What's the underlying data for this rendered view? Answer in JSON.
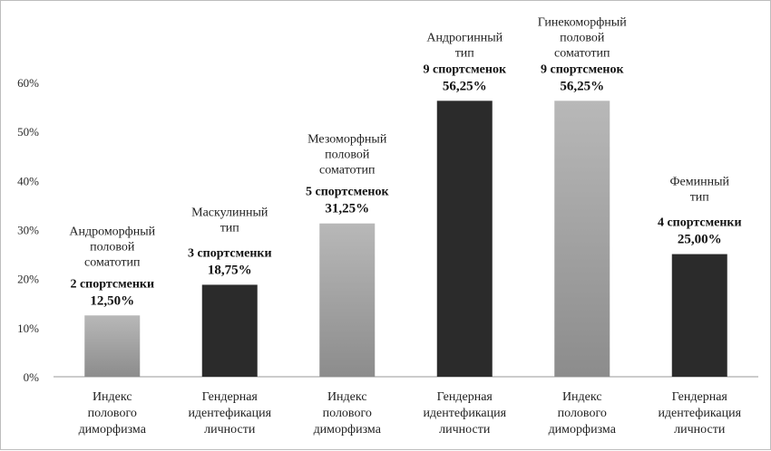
{
  "chart_data": {
    "type": "bar",
    "categories": [
      "Индекс полового диморфизма",
      "Гендерная идентефикация личности",
      "Индекс полового диморфизма",
      "Гендерная идентефикация личности",
      "Индекс полового диморфизма",
      "Гендерная идентефикация личности"
    ],
    "category_lines": [
      [
        "Индекс",
        "полового",
        "диморфизма"
      ],
      [
        "Гендерная",
        "идентефикация",
        "личности"
      ],
      [
        "Индекс",
        "полового",
        "диморфизма"
      ],
      [
        "Гендерная",
        "идентефикация",
        "личности"
      ],
      [
        "Индекс",
        "полового",
        "диморфизма"
      ],
      [
        "Гендерная",
        "идентефикация",
        "личности"
      ]
    ],
    "values": [
      12.5,
      18.75,
      31.25,
      56.25,
      56.25,
      25.0
    ],
    "bar_styles": [
      "gradient",
      "dark",
      "gradient",
      "dark",
      "gradient",
      "dark"
    ],
    "annotations": [
      {
        "type_lines": [
          "Андроморфный",
          "половой",
          "соматотип"
        ],
        "count": "2 спортсменки",
        "percent": "12,50%"
      },
      {
        "type_lines": [
          "Маскулинный",
          "тип"
        ],
        "count": "3 спортсменки",
        "percent": "18,75%"
      },
      {
        "type_lines": [
          "Мезоморфный",
          "половой",
          "соматотип"
        ],
        "count": "5 спортсменок",
        "percent": "31,25%"
      },
      {
        "type_lines": [
          "Андрогинный",
          "тип"
        ],
        "count": "9 спортсменок",
        "percent": "56,25%"
      },
      {
        "type_lines": [
          "Гинекоморфный",
          "половой",
          "соматотип"
        ],
        "count": "9 спортсменок",
        "percent": "56,25%"
      },
      {
        "type_lines": [
          "Феминный",
          "тип"
        ],
        "count": "4 спортсменки",
        "percent": "25,00%"
      }
    ],
    "yticks": [
      "0%",
      "10%",
      "20%",
      "30%",
      "40%",
      "50%",
      "60%"
    ],
    "ylim": [
      0,
      60
    ],
    "grid": false,
    "colors": {
      "dark": "#2b2b2b",
      "gradient_top": "#b8b8b8",
      "gradient_bottom": "#8c8c8c",
      "axis": "#9a9a9a"
    }
  }
}
